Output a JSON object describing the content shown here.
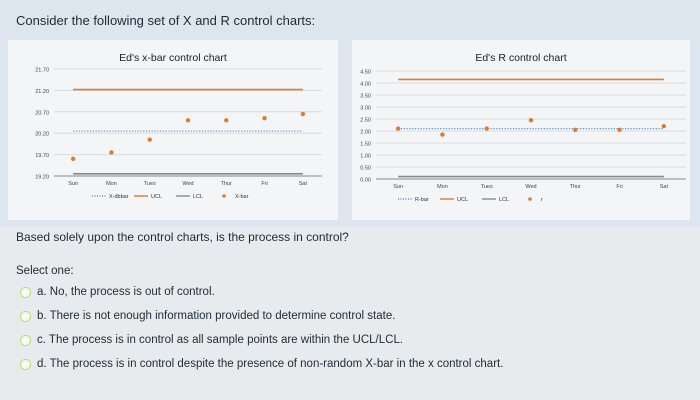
{
  "question": {
    "title": "Consider the following set of X and R control charts:",
    "prompt": "Based solely upon the control charts, is the process in control?",
    "select_label": "Select one:",
    "options": [
      {
        "letter": "a.",
        "text": "a. No, the process is out of control."
      },
      {
        "letter": "b.",
        "text": "b. There is not enough information provided to determine control state."
      },
      {
        "letter": "c.",
        "text": "c. The process is in control as all sample points are within the UCL/LCL."
      },
      {
        "letter": "d.",
        "text": "d. The process is in control despite the presence of non-random X-bar in the x control chart."
      }
    ]
  },
  "chart_data": [
    {
      "type": "line",
      "title": "Ed's x-bar control chart",
      "categories": [
        "Sun",
        "Mon",
        "Tues",
        "Wed",
        "Thur",
        "Fri",
        "Sat"
      ],
      "y_ticks": [
        "21.70",
        "21.20",
        "20.70",
        "20.20",
        "19.70",
        "19.20"
      ],
      "ylim": [
        19.2,
        21.7
      ],
      "series": [
        {
          "name": "X-dbbar",
          "values": [
            20.25,
            20.25,
            20.25,
            20.25,
            20.25,
            20.25,
            20.25
          ],
          "color": "#5b8fd1",
          "style": "dotted"
        },
        {
          "name": "UCL",
          "values": [
            21.22,
            21.22,
            21.22,
            21.22,
            21.22,
            21.22,
            21.22
          ],
          "color": "#e07a2e",
          "style": "solid"
        },
        {
          "name": "LCL",
          "values": [
            19.25,
            19.25,
            19.25,
            19.25,
            19.25,
            19.25,
            19.25
          ],
          "color": "#8a8a8a",
          "style": "solid"
        },
        {
          "name": "X-bar",
          "values": [
            19.6,
            19.75,
            20.05,
            20.5,
            20.5,
            20.55,
            20.65
          ],
          "color": "#e07a2e",
          "style": "markers"
        }
      ],
      "legend": [
        "X-dbbar",
        "UCL",
        "LCL",
        "X-bar"
      ],
      "legend_position": "bottom"
    },
    {
      "type": "line",
      "title": "Ed's R control chart",
      "categories": [
        "Sun",
        "Mon",
        "Tues",
        "Wed",
        "Thur",
        "Fri",
        "Sat"
      ],
      "y_ticks": [
        "4.50",
        "4.00",
        "3.50",
        "3.00",
        "2.50",
        "2.00",
        "1.50",
        "1.00",
        "0.50",
        "0.00"
      ],
      "ylim": [
        0,
        4.5
      ],
      "series": [
        {
          "name": "R-bar",
          "values": [
            2.1,
            2.1,
            2.1,
            2.1,
            2.1,
            2.1,
            2.1
          ],
          "color": "#5b8fd1",
          "style": "dotted"
        },
        {
          "name": "UCL",
          "values": [
            4.15,
            4.15,
            4.15,
            4.15,
            4.15,
            4.15,
            4.15
          ],
          "color": "#e07a2e",
          "style": "solid"
        },
        {
          "name": "LCL",
          "values": [
            0.1,
            0.1,
            0.1,
            0.1,
            0.1,
            0.1,
            0.1
          ],
          "color": "#8a8a8a",
          "style": "solid"
        },
        {
          "name": "r",
          "values": [
            2.1,
            1.85,
            2.1,
            2.45,
            2.05,
            2.05,
            2.2
          ],
          "color": "#e07a2e",
          "style": "markers"
        }
      ],
      "legend": [
        "R-bar",
        "UCL",
        "LCL",
        "r"
      ],
      "legend_position": "bottom"
    }
  ]
}
